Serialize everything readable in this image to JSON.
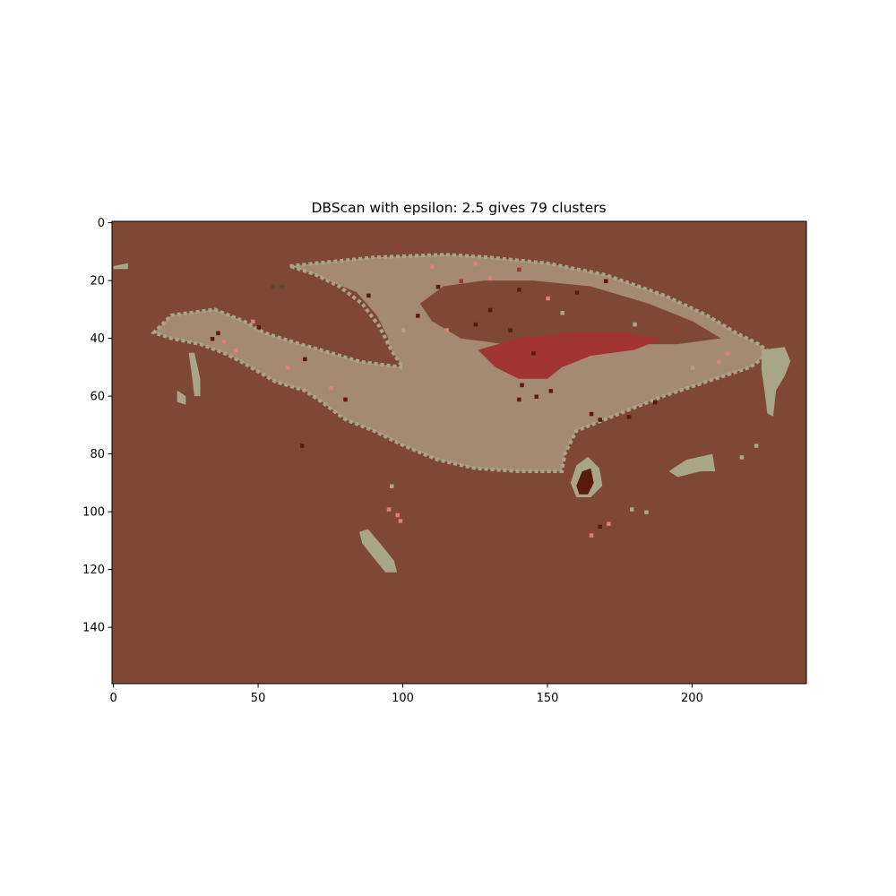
{
  "chart_data": {
    "type": "heatmap",
    "title": "DBScan with epsilon: 2.5 gives 79 clusters",
    "xlabel": "",
    "ylabel": "",
    "xlim": [
      -0.5,
      239.5
    ],
    "ylim": [
      159.5,
      -0.5
    ],
    "x_ticks": [
      0,
      50,
      100,
      150,
      200
    ],
    "y_ticks": [
      0,
      20,
      40,
      60,
      80,
      100,
      120,
      140
    ],
    "grid": false,
    "legend": "none",
    "colors": {
      "background_cluster": "#7f4835",
      "main_cluster": "#a48a70",
      "edge_cluster": "#a9a687",
      "red_cluster": "#a23431",
      "noise_dark": "#5a1a0c",
      "noise_salmon": "#e08070",
      "noise_olive": "#5a4a30"
    },
    "regions": [
      {
        "name": "car-body",
        "color": "main_cluster",
        "points": [
          [
            61,
            15
          ],
          [
            70,
            14
          ],
          [
            90,
            12
          ],
          [
            115,
            11
          ],
          [
            130,
            12
          ],
          [
            150,
            14
          ],
          [
            170,
            18
          ],
          [
            190,
            25
          ],
          [
            205,
            32
          ],
          [
            215,
            38
          ],
          [
            223,
            42
          ],
          [
            227,
            45
          ],
          [
            220,
            50
          ],
          [
            205,
            55
          ],
          [
            190,
            60
          ],
          [
            175,
            66
          ],
          [
            160,
            72
          ],
          [
            156,
            80
          ],
          [
            155,
            86
          ],
          [
            140,
            86
          ],
          [
            125,
            85
          ],
          [
            112,
            82
          ],
          [
            100,
            77
          ],
          [
            90,
            72
          ],
          [
            80,
            68
          ],
          [
            72,
            62
          ],
          [
            66,
            58
          ],
          [
            56,
            55
          ],
          [
            44,
            48
          ],
          [
            38,
            45
          ],
          [
            30,
            42
          ],
          [
            20,
            40
          ],
          [
            14,
            38
          ],
          [
            20,
            32
          ],
          [
            35,
            30
          ],
          [
            45,
            34
          ],
          [
            52,
            38
          ],
          [
            58,
            40
          ],
          [
            68,
            43
          ],
          [
            75,
            45
          ],
          [
            85,
            48
          ],
          [
            92,
            49
          ],
          [
            100,
            50
          ],
          [
            96,
            44
          ],
          [
            92,
            36
          ],
          [
            86,
            28
          ],
          [
            78,
            22
          ],
          [
            70,
            18
          ]
        ]
      },
      {
        "name": "windshield-hole",
        "color": "background_cluster",
        "points": [
          [
            74,
            20
          ],
          [
            84,
            24
          ],
          [
            91,
            32
          ],
          [
            95,
            40
          ],
          [
            93,
            47
          ],
          [
            86,
            48
          ],
          [
            78,
            46
          ],
          [
            72,
            44
          ],
          [
            66,
            42
          ],
          [
            60,
            40
          ],
          [
            58,
            34
          ],
          [
            64,
            28
          ],
          [
            70,
            23
          ]
        ]
      },
      {
        "name": "roof-hole",
        "color": "background_cluster",
        "points": [
          [
            106,
            28
          ],
          [
            114,
            22
          ],
          [
            128,
            20
          ],
          [
            145,
            20
          ],
          [
            165,
            22
          ],
          [
            185,
            28
          ],
          [
            200,
            34
          ],
          [
            210,
            40
          ],
          [
            195,
            42
          ],
          [
            175,
            42
          ],
          [
            160,
            40
          ],
          [
            148,
            40
          ],
          [
            135,
            42
          ],
          [
            120,
            40
          ],
          [
            110,
            34
          ]
        ]
      },
      {
        "name": "side-window",
        "color": "red_cluster",
        "points": [
          [
            126,
            44
          ],
          [
            140,
            40
          ],
          [
            158,
            38
          ],
          [
            175,
            38
          ],
          [
            190,
            40
          ],
          [
            180,
            44
          ],
          [
            165,
            46
          ],
          [
            155,
            50
          ],
          [
            150,
            54
          ],
          [
            140,
            54
          ],
          [
            132,
            50
          ]
        ]
      },
      {
        "name": "rear-wheel",
        "color": "edge_cluster",
        "points": [
          [
            158,
            90
          ],
          [
            160,
            84
          ],
          [
            164,
            81
          ],
          [
            168,
            85
          ],
          [
            169,
            91
          ],
          [
            165,
            95
          ],
          [
            160,
            95
          ]
        ]
      },
      {
        "name": "rear-wheel-core",
        "color": "noise_dark",
        "points": [
          [
            160,
            91
          ],
          [
            162,
            86
          ],
          [
            165,
            85
          ],
          [
            166,
            90
          ],
          [
            164,
            94
          ],
          [
            161,
            94
          ]
        ]
      },
      {
        "name": "front-lower-fragment",
        "color": "edge_cluster",
        "points": [
          [
            85,
            107
          ],
          [
            88,
            106
          ],
          [
            93,
            112
          ],
          [
            97,
            117
          ],
          [
            98,
            121
          ],
          [
            94,
            121
          ],
          [
            90,
            116
          ],
          [
            86,
            111
          ]
        ]
      },
      {
        "name": "rear-light",
        "color": "edge_cluster",
        "points": [
          [
            224,
            44
          ],
          [
            232,
            43
          ],
          [
            234,
            48
          ],
          [
            232,
            53
          ],
          [
            229,
            58
          ],
          [
            228,
            67
          ],
          [
            226,
            66
          ],
          [
            225,
            58
          ],
          [
            224,
            51
          ]
        ]
      },
      {
        "name": "mirror-fragment",
        "color": "edge_cluster",
        "points": [
          [
            22,
            58
          ],
          [
            25,
            60
          ],
          [
            25,
            63
          ],
          [
            22,
            62
          ]
        ]
      },
      {
        "name": "front-edge-fragment",
        "color": "edge_cluster",
        "points": [
          [
            26,
            45
          ],
          [
            28,
            45
          ],
          [
            30,
            54
          ],
          [
            30,
            60
          ],
          [
            28,
            60
          ],
          [
            27,
            52
          ]
        ]
      },
      {
        "name": "rear-bumper-fragment",
        "color": "edge_cluster",
        "points": [
          [
            192,
            86
          ],
          [
            198,
            82
          ],
          [
            207,
            80
          ],
          [
            208,
            86
          ],
          [
            203,
            86
          ],
          [
            195,
            88
          ]
        ]
      },
      {
        "name": "left-edge-speck",
        "color": "edge_cluster",
        "points": [
          [
            0,
            15
          ],
          [
            5,
            14
          ],
          [
            5,
            16
          ],
          [
            0,
            16
          ]
        ]
      }
    ],
    "specks": [
      [
        55,
        22,
        "noise_olive"
      ],
      [
        58,
        22,
        "noise_olive"
      ],
      [
        65,
        77,
        "noise_dark"
      ],
      [
        96,
        91,
        "edge_cluster"
      ],
      [
        95,
        99,
        "noise_salmon"
      ],
      [
        98,
        101,
        "noise_salmon"
      ],
      [
        99,
        103,
        "noise_salmon"
      ],
      [
        171,
        104,
        "noise_salmon"
      ],
      [
        168,
        105,
        "noise_dark"
      ],
      [
        165,
        108,
        "noise_salmon"
      ],
      [
        179,
        99,
        "edge_cluster"
      ],
      [
        184,
        100,
        "edge_cluster"
      ],
      [
        222,
        77,
        "edge_cluster"
      ],
      [
        217,
        81,
        "edge_cluster"
      ],
      [
        36,
        38,
        "noise_dark"
      ],
      [
        34,
        40,
        "noise_dark"
      ],
      [
        38,
        41,
        "noise_salmon"
      ],
      [
        42,
        44,
        "noise_salmon"
      ],
      [
        48,
        34,
        "noise_salmon"
      ],
      [
        50,
        36,
        "noise_dark"
      ],
      [
        112,
        22,
        "noise_dark"
      ],
      [
        120,
        20,
        "red_cluster"
      ],
      [
        130,
        19,
        "noise_salmon"
      ],
      [
        140,
        23,
        "noise_dark"
      ],
      [
        130,
        30,
        "noise_dark"
      ],
      [
        137,
        37,
        "noise_dark"
      ],
      [
        145,
        45,
        "noise_dark"
      ],
      [
        141,
        56,
        "noise_dark"
      ],
      [
        140,
        61,
        "noise_dark"
      ],
      [
        146,
        60,
        "noise_dark"
      ],
      [
        151,
        58,
        "noise_dark"
      ],
      [
        165,
        66,
        "noise_dark"
      ],
      [
        168,
        68,
        "noise_dark"
      ],
      [
        178,
        67,
        "noise_dark"
      ],
      [
        187,
        62,
        "noise_dark"
      ],
      [
        209,
        48,
        "noise_salmon"
      ],
      [
        212,
        45,
        "noise_salmon"
      ],
      [
        75,
        57,
        "noise_salmon"
      ],
      [
        80,
        61,
        "noise_dark"
      ],
      [
        66,
        47,
        "noise_dark"
      ],
      [
        60,
        50,
        "noise_salmon"
      ],
      [
        200,
        50,
        "edge_cluster"
      ],
      [
        195,
        37,
        "red_cluster"
      ],
      [
        98,
        8,
        "red_cluster"
      ],
      [
        110,
        15,
        "noise_salmon"
      ],
      [
        125,
        14,
        "noise_salmon"
      ],
      [
        140,
        16,
        "red_cluster"
      ],
      [
        88,
        25,
        "noise_dark"
      ],
      [
        160,
        24,
        "noise_dark"
      ],
      [
        170,
        20,
        "noise_dark"
      ],
      [
        180,
        35,
        "edge_cluster"
      ],
      [
        100,
        37,
        "edge_cluster"
      ],
      [
        105,
        32,
        "noise_dark"
      ],
      [
        115,
        37,
        "noise_salmon"
      ],
      [
        125,
        35,
        "noise_dark"
      ],
      [
        150,
        26,
        "noise_salmon"
      ],
      [
        155,
        31,
        "edge_cluster"
      ]
    ]
  }
}
